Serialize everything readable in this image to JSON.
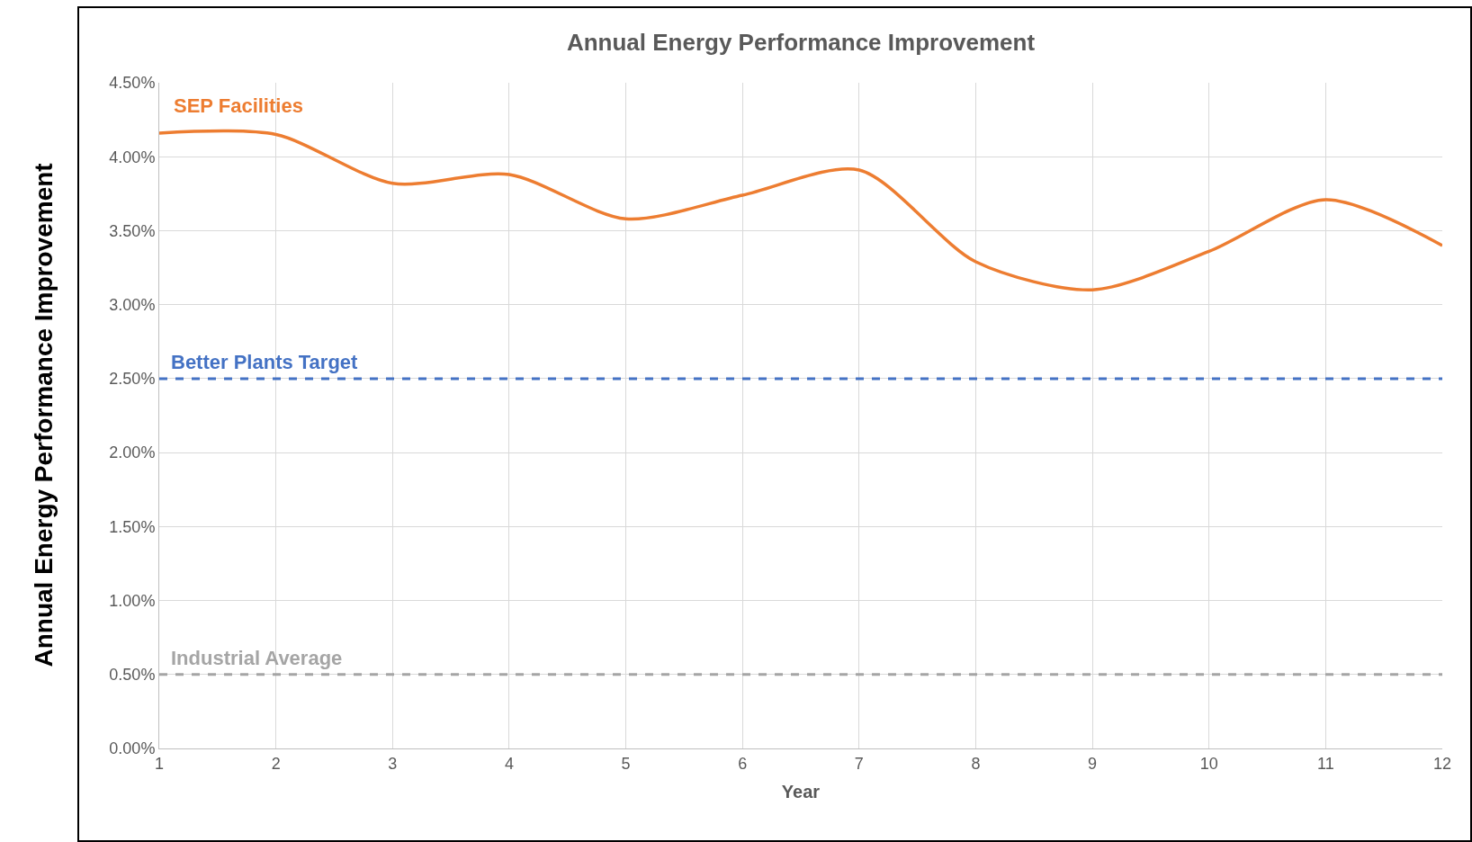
{
  "chart_data": {
    "type": "line",
    "title": "Annual Energy Performance Improvement",
    "xlabel": "Year",
    "ylabel": "Annual Energy Performance Improvement",
    "x": [
      1,
      2,
      3,
      4,
      5,
      6,
      7,
      8,
      9,
      10,
      11,
      12
    ],
    "series": [
      {
        "name": "SEP Facilities",
        "color": "#ed7d31",
        "values": [
          4.16,
          4.15,
          3.82,
          3.88,
          3.58,
          3.74,
          3.91,
          3.29,
          3.1,
          3.36,
          3.71,
          3.4
        ]
      }
    ],
    "xlim": [
      1,
      12
    ],
    "xticks": [
      1,
      2,
      3,
      4,
      5,
      6,
      7,
      8,
      9,
      10,
      11,
      12
    ],
    "ylim": [
      0,
      4.5
    ],
    "yticks": [
      {
        "value": 0,
        "label": "0.00%"
      },
      {
        "value": 0.5,
        "label": "0.50%"
      },
      {
        "value": 1,
        "label": "1.00%"
      },
      {
        "value": 1.5,
        "label": "1.50%"
      },
      {
        "value": 2,
        "label": "2.00%"
      },
      {
        "value": 2.5,
        "label": "2.50%"
      },
      {
        "value": 3,
        "label": "3.00%"
      },
      {
        "value": 3.5,
        "label": "3.50%"
      },
      {
        "value": 4,
        "label": "4.00%"
      },
      {
        "value": 4.5,
        "label": "4.50%"
      }
    ],
    "ref_lines": [
      {
        "axis": "y",
        "value": 2.5,
        "label": "Better Plants Target",
        "color": "#4472c4",
        "line_style": "dashed"
      },
      {
        "axis": "y",
        "value": 0.5,
        "label": "Industrial Average",
        "color": "#a5a5a5",
        "line_style": "dashed"
      }
    ],
    "grid": true,
    "legend": false,
    "marker": "none",
    "line_style": "solid"
  }
}
